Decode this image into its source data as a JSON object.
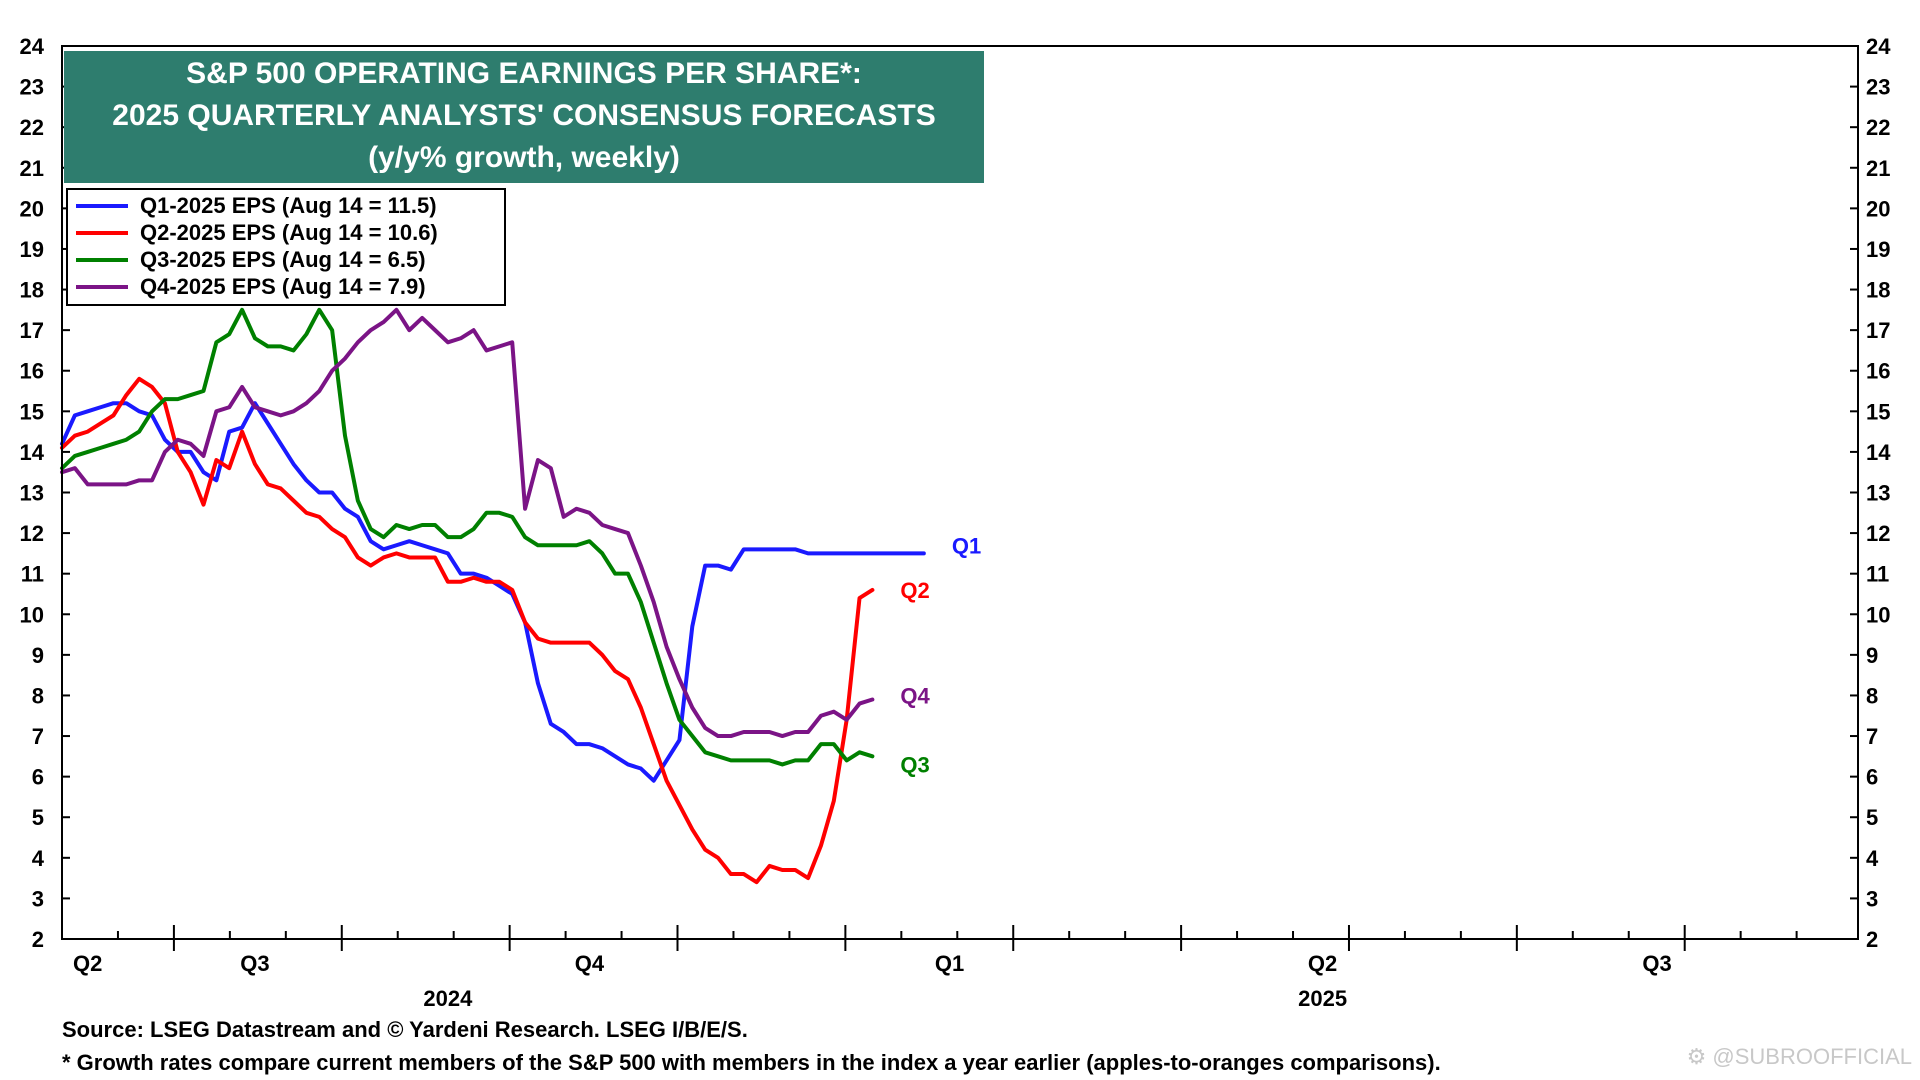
{
  "chart_data": {
    "type": "line",
    "title_lines": [
      "S&P 500 OPERATING EARNINGS PER SHARE*:",
      "2025 QUARTERLY ANALYSTS' CONSENSUS FORECASTS",
      "(y/y% growth, weekly)"
    ],
    "ylim": [
      2,
      24
    ],
    "yticks": [
      "2",
      "3",
      "4",
      "5",
      "6",
      "7",
      "8",
      "9",
      "10",
      "11",
      "12",
      "13",
      "14",
      "15",
      "16",
      "17",
      "18",
      "19",
      "20",
      "21",
      "22",
      "23",
      "24"
    ],
    "grid": false,
    "legend_position": "top-left",
    "x_quarter_labels": [
      {
        "label": "Q2",
        "week": 2
      },
      {
        "label": "Q3",
        "week": 15
      },
      {
        "label": "Q4",
        "week": 41
      },
      {
        "label": "Q1",
        "week": 69
      },
      {
        "label": "Q2",
        "week": 98
      },
      {
        "label": "Q3",
        "week": 124
      }
    ],
    "x_year_labels": [
      {
        "label": "2024",
        "week": 30
      },
      {
        "label": "2025",
        "week": 98
      }
    ],
    "series": [
      {
        "name": "Q1-2025 EPS (Aug 14 = 11.5)",
        "end_label": "Q1",
        "color": "#1a1aff",
        "values": [
          14.2,
          14.9,
          15.0,
          15.1,
          15.2,
          15.2,
          15.0,
          14.9,
          14.3,
          14.0,
          14.0,
          13.5,
          13.3,
          14.5,
          14.6,
          15.2,
          14.7,
          14.2,
          13.7,
          13.3,
          13.0,
          13.0,
          12.6,
          12.4,
          11.8,
          11.6,
          11.7,
          11.8,
          11.7,
          11.6,
          11.5,
          11.0,
          11.0,
          10.9,
          10.7,
          10.5,
          9.8,
          8.3,
          7.3,
          7.1,
          6.8,
          6.8,
          6.7,
          6.5,
          6.3,
          6.2,
          5.9,
          6.4,
          6.9,
          9.7,
          11.2,
          11.2,
          11.1,
          11.6,
          11.6,
          11.6,
          11.6,
          11.6,
          11.5,
          11.5,
          11.5,
          11.5,
          11.5,
          11.5,
          11.5,
          11.5,
          11.5,
          11.5
        ]
      },
      {
        "name": "Q2-2025 EPS (Aug 14 = 10.6)",
        "end_label": "Q2",
        "color": "#ff0000",
        "values": [
          14.1,
          14.4,
          14.5,
          14.7,
          14.9,
          15.4,
          15.8,
          15.6,
          15.2,
          14.0,
          13.5,
          12.7,
          13.8,
          13.6,
          14.5,
          13.7,
          13.2,
          13.1,
          12.8,
          12.5,
          12.4,
          12.1,
          11.9,
          11.4,
          11.2,
          11.4,
          11.5,
          11.4,
          11.4,
          11.4,
          10.8,
          10.8,
          10.9,
          10.8,
          10.8,
          10.6,
          9.8,
          9.4,
          9.3,
          9.3,
          9.3,
          9.3,
          9.0,
          8.6,
          8.4,
          7.7,
          6.8,
          5.9,
          5.3,
          4.7,
          4.2,
          4.0,
          3.6,
          3.6,
          3.4,
          3.8,
          3.7,
          3.7,
          3.5,
          4.3,
          5.4,
          7.4,
          10.4,
          10.6
        ]
      },
      {
        "name": "Q3-2025 EPS (Aug 14 = 6.5)",
        "end_label": "Q3",
        "color": "#008000",
        "values": [
          13.6,
          13.9,
          14.0,
          14.1,
          14.2,
          14.3,
          14.5,
          15.0,
          15.3,
          15.3,
          15.4,
          15.5,
          16.7,
          16.9,
          17.5,
          16.8,
          16.6,
          16.6,
          16.5,
          16.9,
          17.5,
          17.0,
          14.4,
          12.8,
          12.1,
          11.9,
          12.2,
          12.1,
          12.2,
          12.2,
          11.9,
          11.9,
          12.1,
          12.5,
          12.5,
          12.4,
          11.9,
          11.7,
          11.7,
          11.7,
          11.7,
          11.8,
          11.5,
          11.0,
          11.0,
          10.3,
          9.3,
          8.3,
          7.4,
          7.0,
          6.6,
          6.5,
          6.4,
          6.4,
          6.4,
          6.4,
          6.3,
          6.4,
          6.4,
          6.8,
          6.8,
          6.4,
          6.6,
          6.5
        ]
      },
      {
        "name": "Q4-2025 EPS (Aug 14 = 7.9)",
        "end_label": "Q4",
        "color": "#7b1486",
        "values": [
          13.5,
          13.6,
          13.2,
          13.2,
          13.2,
          13.2,
          13.3,
          13.3,
          14.0,
          14.3,
          14.2,
          13.9,
          15.0,
          15.1,
          15.6,
          15.1,
          15.0,
          14.9,
          15.0,
          15.2,
          15.5,
          16.0,
          16.3,
          16.7,
          17.0,
          17.2,
          17.5,
          17.0,
          17.3,
          17.0,
          16.7,
          16.8,
          17.0,
          16.5,
          16.6,
          16.7,
          12.6,
          13.8,
          13.6,
          12.4,
          12.6,
          12.5,
          12.2,
          12.1,
          12.0,
          11.2,
          10.3,
          9.2,
          8.4,
          7.7,
          7.2,
          7.0,
          7.0,
          7.1,
          7.1,
          7.1,
          7.0,
          7.1,
          7.1,
          7.5,
          7.6,
          7.4,
          7.8,
          7.9
        ]
      }
    ],
    "source_note": "Source: LSEG Datastream and © Yardeni Research. LSEG I/B/E/S.",
    "footnote": "* Growth rates compare current members of the S&P 500 with members in the index a year earlier (apples-to-oranges comparisons)."
  },
  "watermark": "⚙ @SUBROOFFICIAL"
}
